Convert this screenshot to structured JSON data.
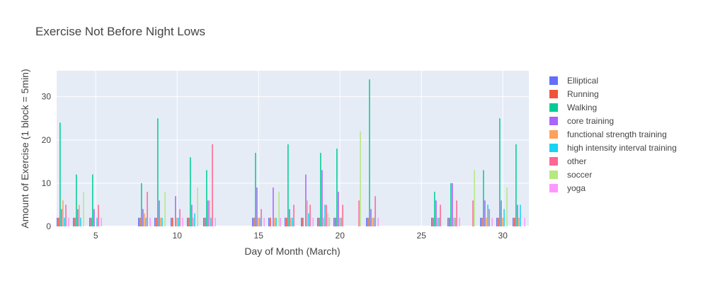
{
  "chart_data": {
    "type": "bar",
    "title": "Exercise Not Before Night Lows",
    "xlabel": "Day of Month (March)",
    "ylabel": "Amount of Exercise (1 block = 5min)",
    "xlim": [
      2.6,
      31.6
    ],
    "ylim": [
      0,
      36
    ],
    "xticks": [
      5,
      10,
      15,
      20,
      25,
      30
    ],
    "yticks": [
      0,
      10,
      20,
      30
    ],
    "grid": true,
    "legend_position": "right",
    "series": [
      {
        "name": "Elliptical",
        "color": "#636efa",
        "points": [
          [
            3,
            2
          ],
          [
            4,
            2
          ],
          [
            5,
            2
          ],
          [
            8,
            2
          ],
          [
            9,
            2
          ],
          [
            10,
            2
          ],
          [
            11,
            2
          ],
          [
            12,
            2
          ],
          [
            15,
            2
          ],
          [
            16,
            2
          ],
          [
            17,
            2
          ],
          [
            18,
            2
          ],
          [
            19,
            2
          ],
          [
            20,
            2
          ],
          [
            22,
            2
          ],
          [
            26,
            2
          ],
          [
            27,
            2
          ],
          [
            29,
            2
          ],
          [
            30,
            2
          ],
          [
            31,
            2
          ]
        ]
      },
      {
        "name": "Running",
        "color": "#ef553b",
        "points": [
          [
            3,
            2
          ],
          [
            4,
            2
          ],
          [
            5,
            2
          ],
          [
            8,
            2
          ],
          [
            9,
            2
          ],
          [
            10,
            2
          ],
          [
            11,
            2
          ],
          [
            12,
            2
          ],
          [
            15,
            2
          ],
          [
            16,
            2
          ],
          [
            17,
            2
          ],
          [
            18,
            2
          ],
          [
            19,
            2
          ],
          [
            20,
            2
          ],
          [
            22,
            2
          ],
          [
            26,
            2
          ],
          [
            27,
            2
          ],
          [
            29,
            2
          ],
          [
            30,
            2
          ],
          [
            31,
            2
          ]
        ]
      },
      {
        "name": "Walking",
        "color": "#00cc96",
        "points": [
          [
            3,
            24
          ],
          [
            4,
            12
          ],
          [
            5,
            12
          ],
          [
            8,
            10
          ],
          [
            9,
            25
          ],
          [
            11,
            16
          ],
          [
            12,
            13
          ],
          [
            15,
            17
          ],
          [
            17,
            19
          ],
          [
            19,
            17
          ],
          [
            20,
            18
          ],
          [
            22,
            34
          ],
          [
            26,
            8
          ],
          [
            27,
            10
          ],
          [
            29,
            13
          ],
          [
            30,
            25
          ],
          [
            31,
            19
          ]
        ]
      },
      {
        "name": "core training",
        "color": "#ab63fa",
        "points": [
          [
            3,
            4
          ],
          [
            4,
            4
          ],
          [
            5,
            4
          ],
          [
            8,
            4
          ],
          [
            9,
            6
          ],
          [
            10,
            7
          ],
          [
            11,
            5
          ],
          [
            12,
            6
          ],
          [
            15,
            9
          ],
          [
            16,
            9
          ],
          [
            17,
            4
          ],
          [
            18,
            12
          ],
          [
            19,
            13
          ],
          [
            20,
            8
          ],
          [
            22,
            4
          ],
          [
            26,
            6
          ],
          [
            27,
            10
          ],
          [
            29,
            6
          ],
          [
            30,
            6
          ],
          [
            31,
            5
          ]
        ]
      },
      {
        "name": "functional strength training",
        "color": "#ffa15a",
        "points": [
          [
            3,
            6
          ],
          [
            4,
            5
          ],
          [
            8,
            3
          ],
          [
            9,
            2
          ],
          [
            10,
            2
          ],
          [
            11,
            2
          ],
          [
            12,
            6
          ],
          [
            15,
            2
          ],
          [
            16,
            2
          ],
          [
            17,
            2
          ],
          [
            18,
            6
          ],
          [
            19,
            2
          ],
          [
            20,
            2
          ],
          [
            22,
            2
          ],
          [
            26,
            2
          ],
          [
            27,
            2
          ],
          [
            29,
            2
          ],
          [
            30,
            2
          ],
          [
            31,
            2
          ]
        ]
      },
      {
        "name": "high intensity interval training",
        "color": "#19d3f3",
        "points": [
          [
            3,
            2
          ],
          [
            4,
            2
          ],
          [
            5,
            2
          ],
          [
            8,
            2
          ],
          [
            9,
            2
          ],
          [
            10,
            2
          ],
          [
            11,
            3
          ],
          [
            12,
            2
          ],
          [
            15,
            2
          ],
          [
            16,
            2
          ],
          [
            17,
            2
          ],
          [
            18,
            3
          ],
          [
            19,
            5
          ],
          [
            20,
            2
          ],
          [
            22,
            2
          ],
          [
            26,
            2
          ],
          [
            27,
            2
          ],
          [
            29,
            5
          ],
          [
            30,
            4
          ],
          [
            31,
            5
          ]
        ]
      },
      {
        "name": "other",
        "color": "#ff6692",
        "points": [
          [
            3,
            5
          ],
          [
            5,
            5
          ],
          [
            8,
            8
          ],
          [
            10,
            4
          ],
          [
            12,
            19
          ],
          [
            15,
            4
          ],
          [
            17,
            5
          ],
          [
            18,
            5
          ],
          [
            19,
            5
          ],
          [
            20,
            5
          ],
          [
            21,
            6
          ],
          [
            22,
            7
          ],
          [
            26,
            5
          ],
          [
            27,
            6
          ],
          [
            28,
            6
          ],
          [
            29,
            4
          ]
        ]
      },
      {
        "name": "soccer",
        "color": "#b6e880",
        "points": [
          [
            4,
            8
          ],
          [
            9,
            8
          ],
          [
            11,
            9
          ],
          [
            16,
            8
          ],
          [
            19,
            3
          ],
          [
            21,
            22
          ],
          [
            28,
            13
          ],
          [
            30,
            9
          ]
        ]
      },
      {
        "name": "yoga",
        "color": "#ff97ff",
        "points": [
          [
            3,
            2
          ],
          [
            5,
            2
          ],
          [
            8,
            2
          ],
          [
            10,
            2
          ],
          [
            12,
            2
          ],
          [
            15,
            2
          ],
          [
            16,
            2
          ],
          [
            18,
            2
          ],
          [
            19,
            2
          ],
          [
            22,
            2
          ],
          [
            27,
            2
          ],
          [
            29,
            2
          ],
          [
            31,
            2
          ]
        ]
      }
    ]
  }
}
